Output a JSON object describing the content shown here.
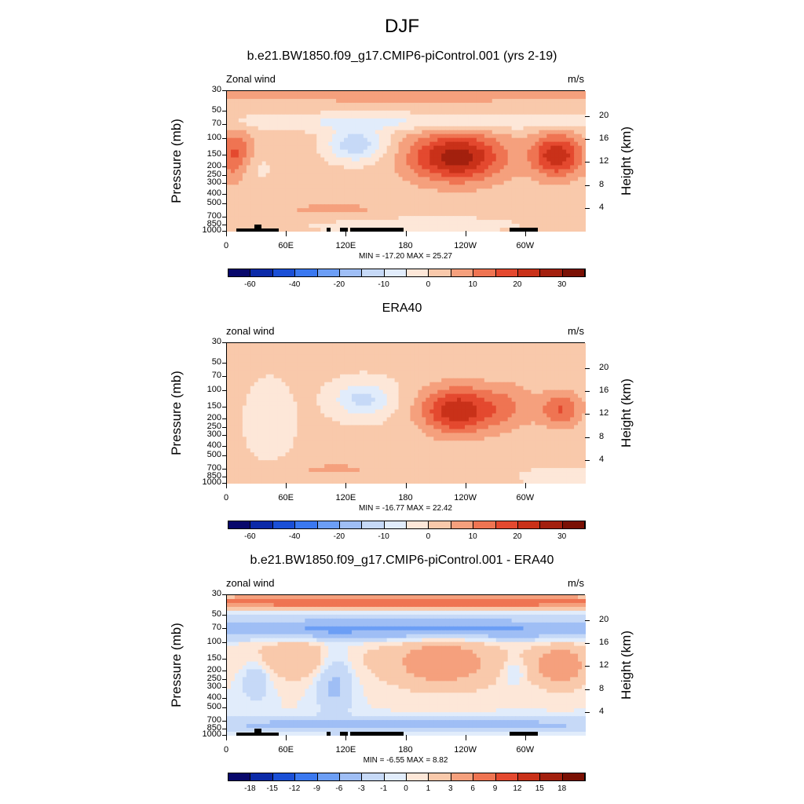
{
  "title": "DJF",
  "chart_data": [
    {
      "type": "heatmap",
      "title": "b.e21.BW1850.f09_g17.CMIP6-piControl.001 (yrs 2-19)",
      "left_label": "Zonal wind",
      "units": "m/s",
      "ylabel": "Pressure (mb)",
      "y2label": "Height (km)",
      "x_ticks": [
        "0",
        "60E",
        "120E",
        "180",
        "120W",
        "60W"
      ],
      "y_ticks": [
        "30",
        "50",
        "70",
        "100",
        "150",
        "200",
        "250",
        "300",
        "400",
        "500",
        "700",
        "850",
        "1000"
      ],
      "y2_ticks": [
        "20",
        "16",
        "12",
        "8",
        "4"
      ],
      "min_max": "MIN = -17.20  MAX =  25.27",
      "colorbar_levels": [
        "-60",
        "-40",
        "-20",
        "-10",
        "0",
        "10",
        "20",
        "30"
      ],
      "features": [
        {
          "lon": 225,
          "p": 170,
          "value": 25
        },
        {
          "lon": 325,
          "p": 150,
          "value": 20
        },
        {
          "lon": 125,
          "p": 120,
          "value": -15
        }
      ]
    },
    {
      "type": "heatmap",
      "title": "ERA40",
      "left_label": "zonal wind",
      "units": "m/s",
      "ylabel": "Pressure (mb)",
      "y2label": "Height (km)",
      "x_ticks": [
        "0",
        "60E",
        "120E",
        "180",
        "120W",
        "60W"
      ],
      "y_ticks": [
        "30",
        "50",
        "70",
        "100",
        "150",
        "200",
        "250",
        "300",
        "400",
        "500",
        "700",
        "850",
        "1000"
      ],
      "y2_ticks": [
        "20",
        "16",
        "12",
        "8",
        "4"
      ],
      "min_max": "MIN = -16.77  MAX =  22.42",
      "colorbar_levels": [
        "-60",
        "-40",
        "-20",
        "-10",
        "0",
        "10",
        "20",
        "30"
      ],
      "features": [
        {
          "lon": 235,
          "p": 170,
          "value": 22
        },
        {
          "lon": 330,
          "p": 160,
          "value": 15
        },
        {
          "lon": 130,
          "p": 120,
          "value": -12
        }
      ]
    },
    {
      "type": "heatmap",
      "title": "b.e21.BW1850.f09_g17.CMIP6-piControl.001 - ERA40",
      "left_label": "zonal wind",
      "units": "m/s",
      "ylabel": "Pressure (mb)",
      "y2label": "Height (km)",
      "x_ticks": [
        "0",
        "60E",
        "120E",
        "180",
        "120W",
        "60W"
      ],
      "y_ticks": [
        "30",
        "50",
        "70",
        "100",
        "150",
        "200",
        "250",
        "300",
        "400",
        "500",
        "700",
        "850",
        "1000"
      ],
      "y2_ticks": [
        "20",
        "16",
        "12",
        "8",
        "4"
      ],
      "min_max": "MIN =  -6.55  MAX =   8.82",
      "colorbar_levels": [
        "-18",
        "-15",
        "-12",
        "-9",
        "-6",
        "-3",
        "-1",
        "0",
        "1",
        "3",
        "6",
        "9",
        "12",
        "15",
        "18"
      ]
    }
  ],
  "colors": {
    "scale": [
      "#08086b",
      "#0b2aa8",
      "#1a4fd6",
      "#3a78f0",
      "#6c9ef5",
      "#9fbef5",
      "#c6d9f7",
      "#e1ecfb",
      "#fde7d8",
      "#f9c9ab",
      "#f5a07d",
      "#ef7452",
      "#e4492f",
      "#c93119",
      "#a3200e",
      "#7a1004"
    ]
  }
}
